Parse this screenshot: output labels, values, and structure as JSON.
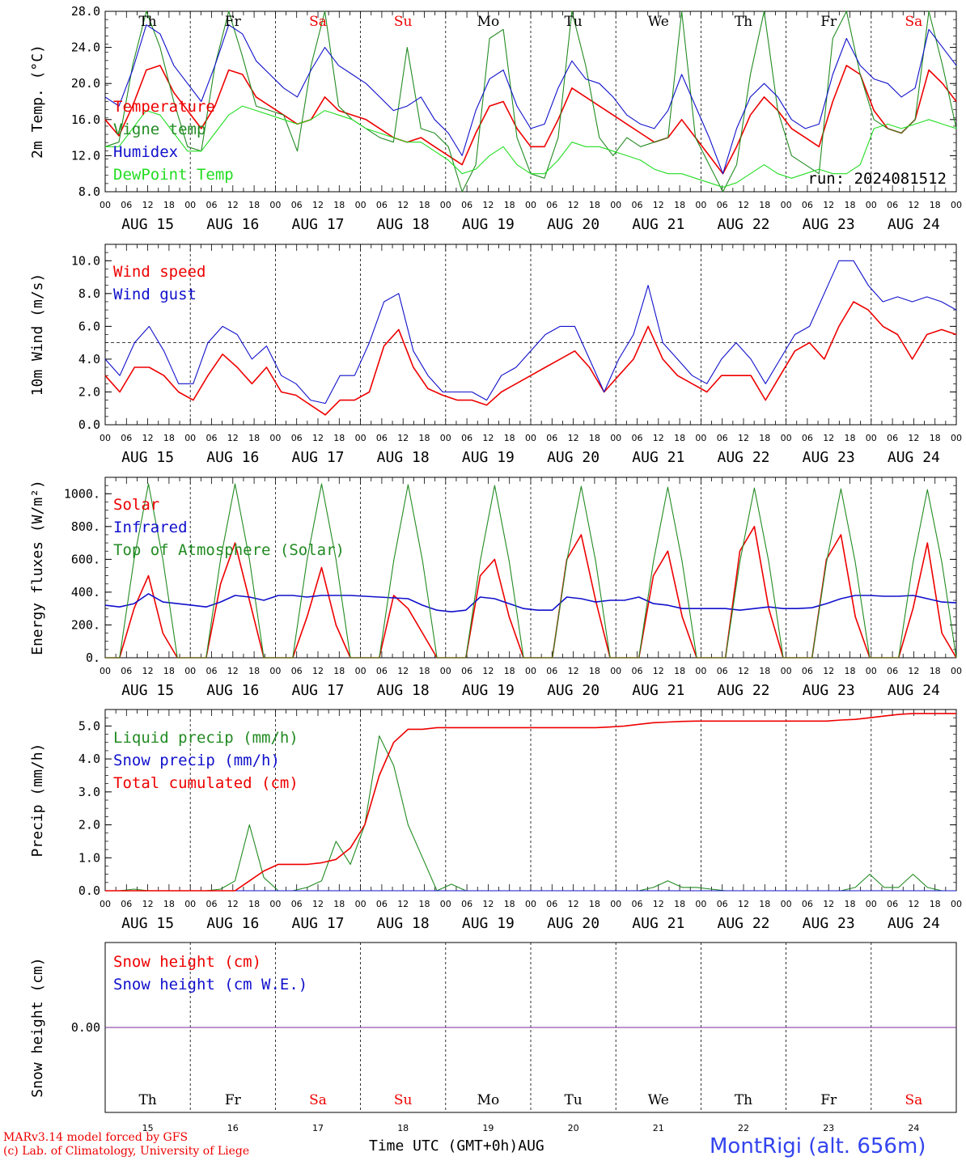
{
  "days": [
    "Th",
    "Fr",
    "Sa",
    "Su",
    "Mo",
    "Tu",
    "We",
    "Th",
    "Fr",
    "Sa"
  ],
  "day_colors": [
    "#000000",
    "#000000",
    "#ee0000",
    "#ee0000",
    "#000000",
    "#000000",
    "#000000",
    "#000000",
    "#000000",
    "#ee0000"
  ],
  "dates": [
    "AUG 15",
    "AUG 16",
    "AUG 17",
    "AUG 18",
    "AUG 19",
    "AUG 20",
    "AUG 21",
    "AUG 22",
    "AUG 23",
    "AUG 24"
  ],
  "day_numbers": [
    "15",
    "16",
    "17",
    "18",
    "19",
    "20",
    "21",
    "22",
    "23",
    "24"
  ],
  "hour_labels": [
    "00",
    "06",
    "12",
    "18"
  ],
  "run_label": "run: 2024081512",
  "xaxis_label": "Time UTC (GMT+0h)",
  "xaxis_month": "AUG",
  "footer": {
    "model": "MARv3.14 model forced by GFS",
    "lab": "(c) Lab. of Climatology, University of Liege",
    "station": "MontRigi (alt. 656m)"
  },
  "chart_data": [
    {
      "type": "line",
      "ylabel": "2m Temp. (°C)",
      "ylim": [
        8.0,
        28.0
      ],
      "yticks": [
        "8.0",
        "12.0",
        "16.0",
        "20.0",
        "24.0",
        "28.0"
      ],
      "x_step_hours": 6,
      "series": [
        {
          "name": "Temperature",
          "color": "#ee0000",
          "values": [
            16,
            14.2,
            17.5,
            21.5,
            22,
            19,
            17,
            15,
            17.5,
            21.5,
            21,
            18.5,
            17.5,
            16.5,
            15.5,
            16,
            18.5,
            17,
            16.5,
            16,
            15,
            14,
            13.5,
            14,
            13,
            12,
            11,
            14.5,
            17.5,
            18,
            15,
            13,
            13,
            16,
            19.5,
            18.5,
            17.5,
            16.5,
            15.5,
            14.5,
            13.5,
            14,
            16,
            14,
            12,
            10,
            13,
            16.5,
            18.5,
            17,
            15,
            14,
            13,
            18,
            22,
            21,
            17,
            15,
            14.5,
            16,
            21.5,
            20,
            18
          ]
        },
        {
          "name": "Vigne temp",
          "color": "#228b22",
          "values": [
            13,
            13.5,
            22,
            28,
            24,
            18,
            13,
            12.5,
            22,
            28,
            23,
            17.5,
            17,
            16.5,
            12.5,
            22,
            28,
            17.5,
            16,
            15,
            14,
            13.5,
            24,
            15,
            14.5,
            13,
            8,
            11,
            25,
            26,
            14,
            10,
            9.5,
            14,
            28,
            22,
            14,
            12,
            14,
            13,
            13.5,
            14,
            28,
            14,
            11,
            8,
            11,
            21,
            28,
            17,
            12,
            11,
            10,
            25,
            28,
            21,
            16,
            15,
            14.5,
            16,
            28,
            22,
            15
          ]
        },
        {
          "name": "Humidex",
          "color": "#1010cc",
          "values": [
            18.5,
            17.5,
            21.5,
            26.5,
            25.5,
            22,
            20,
            18,
            22,
            26.5,
            25.5,
            22.5,
            21,
            19.5,
            18.5,
            21.5,
            24,
            22,
            21,
            20,
            18.5,
            17,
            17.5,
            18.5,
            16,
            14.5,
            12,
            17,
            20.5,
            21.5,
            17.5,
            15,
            15.5,
            19.5,
            22.5,
            20.5,
            20,
            18.5,
            16.5,
            15.5,
            15,
            17,
            21,
            17.5,
            14,
            10,
            15,
            18.5,
            20,
            18.5,
            16,
            15,
            15.5,
            21,
            25,
            22,
            20.5,
            20,
            18.5,
            19.5,
            26,
            24,
            22
          ]
        },
        {
          "name": "DewPoint Temp",
          "color": "#22dd22",
          "values": [
            13,
            13,
            15,
            17,
            16.5,
            14.5,
            12.5,
            12.5,
            14.5,
            16.5,
            17.5,
            17,
            16.5,
            16,
            15.5,
            16,
            17,
            16.5,
            16,
            15,
            14.5,
            14,
            13.5,
            13.5,
            12.5,
            11.5,
            10,
            10.5,
            12,
            13,
            11,
            10,
            10,
            11.5,
            13.5,
            13,
            13,
            12.5,
            12,
            11.5,
            10.5,
            10,
            10,
            9.5,
            9,
            8.5,
            9,
            10,
            11,
            10,
            9.5,
            10,
            10.5,
            10,
            10,
            11,
            15,
            15.5,
            15,
            15.5,
            16,
            15.5,
            15
          ]
        }
      ]
    },
    {
      "type": "line",
      "ylabel": "10m Wind (m/s)",
      "ylim": [
        0.0,
        11.0
      ],
      "yticks": [
        "0.0",
        "2.0",
        "4.0",
        "6.0",
        "8.0",
        "10.0"
      ],
      "reference_line": 5.0,
      "x_step_hours": 6,
      "series": [
        {
          "name": "Wind speed",
          "color": "#ee0000",
          "values": [
            3,
            2,
            3.5,
            3.5,
            3,
            2,
            1.5,
            3,
            4.3,
            3.5,
            2.5,
            3.5,
            2,
            1.8,
            1.2,
            0.6,
            1.5,
            1.5,
            2,
            4.8,
            5.8,
            3.5,
            2.2,
            1.8,
            1.5,
            1.5,
            1.2,
            2,
            2.5,
            3,
            3.5,
            4,
            4.5,
            3.5,
            2,
            3,
            4,
            6,
            4,
            3,
            2.5,
            2,
            3,
            3,
            3,
            1.5,
            3,
            4.5,
            5,
            4,
            6,
            7.5,
            7,
            6,
            5.5,
            4,
            5.5,
            5.8,
            5.5
          ]
        },
        {
          "name": "Wind gust",
          "color": "#1010cc",
          "values": [
            4,
            3,
            5,
            6,
            4.5,
            2.5,
            2.5,
            5,
            6,
            5.5,
            4,
            4.8,
            3,
            2.5,
            1.5,
            1.3,
            3,
            3,
            5,
            7.5,
            8,
            4.5,
            3,
            2,
            2,
            2,
            1.5,
            3,
            3.5,
            4.5,
            5.5,
            6,
            6,
            4,
            2,
            4,
            5.5,
            8.5,
            5,
            4,
            3,
            2.5,
            4,
            5,
            4,
            2.5,
            4,
            5.5,
            6,
            8,
            10,
            10,
            8.5,
            7.5,
            7.8,
            7.5,
            7.8,
            7.5,
            7
          ]
        }
      ]
    },
    {
      "type": "line",
      "ylabel": "Energy fluxes (W/m²)",
      "ylim": [
        0,
        1100
      ],
      "yticks": [
        "0.",
        "200.",
        "400.",
        "600.",
        "800.",
        "1000."
      ],
      "x_step_hours": 6,
      "series": [
        {
          "name": "Solar",
          "color": "#ee0000",
          "values": [
            0,
            0,
            300,
            500,
            150,
            0,
            0,
            0,
            450,
            700,
            350,
            0,
            0,
            0,
            250,
            550,
            200,
            0,
            0,
            0,
            380,
            300,
            150,
            0,
            0,
            0,
            500,
            600,
            250,
            0,
            0,
            0,
            600,
            750,
            350,
            0,
            0,
            0,
            500,
            650,
            250,
            0,
            0,
            0,
            650,
            800,
            300,
            0,
            0,
            0,
            600,
            750,
            250,
            0,
            0,
            0,
            300,
            700,
            150,
            0
          ]
        },
        {
          "name": "Infrared",
          "color": "#1010cc",
          "values": [
            320,
            310,
            330,
            390,
            340,
            330,
            320,
            310,
            340,
            380,
            370,
            350,
            380,
            380,
            370,
            380,
            380,
            380,
            375,
            370,
            365,
            360,
            320,
            290,
            280,
            290,
            370,
            360,
            330,
            300,
            290,
            290,
            370,
            360,
            340,
            350,
            350,
            370,
            330,
            320,
            300,
            300,
            300,
            300,
            290,
            300,
            310,
            300,
            300,
            305,
            330,
            360,
            380,
            380,
            375,
            375,
            380,
            360,
            340,
            335
          ]
        },
        {
          "name": "Top of Atmosphere (Solar)",
          "color": "#228b22",
          "values": [
            0,
            0,
            600,
            1060,
            600,
            0,
            0,
            0,
            600,
            1060,
            600,
            0,
            0,
            0,
            600,
            1060,
            600,
            0,
            0,
            0,
            590,
            1055,
            590,
            0,
            0,
            0,
            590,
            1050,
            590,
            0,
            0,
            0,
            590,
            1045,
            590,
            0,
            0,
            0,
            585,
            1040,
            585,
            0,
            0,
            0,
            585,
            1035,
            585,
            0,
            0,
            0,
            580,
            1030,
            580,
            0,
            0,
            0,
            580,
            1025,
            580,
            0
          ]
        }
      ]
    },
    {
      "type": "line",
      "ylabel": "Precip (mm/h)",
      "ylim": [
        0.0,
        5.5
      ],
      "yticks": [
        "0.0",
        "1.0",
        "2.0",
        "3.0",
        "4.0",
        "5.0"
      ],
      "x_step_hours": 6,
      "series": [
        {
          "name": "Liquid precip (mm/h)",
          "color": "#228b22",
          "values": [
            0,
            0,
            0.05,
            0,
            0,
            0,
            0,
            0,
            0.05,
            0.3,
            2.0,
            0.4,
            0,
            0,
            0.1,
            0.3,
            1.5,
            0.8,
            2.0,
            4.7,
            3.8,
            2.0,
            1.0,
            0,
            0.2,
            0,
            0,
            0,
            0,
            0,
            0,
            0,
            0,
            0,
            0,
            0,
            0,
            0,
            0.1,
            0.3,
            0.1,
            0.1,
            0.05,
            0,
            0,
            0,
            0,
            0,
            0,
            0,
            0,
            0,
            0.1,
            0.5,
            0.1,
            0.1,
            0.5,
            0.1,
            0,
            0
          ]
        },
        {
          "name": "Snow precip (mm/h)",
          "color": "#1010cc",
          "values": [
            0,
            0,
            0,
            0,
            0,
            0,
            0,
            0,
            0,
            0,
            0,
            0,
            0,
            0,
            0,
            0,
            0,
            0,
            0,
            0,
            0,
            0,
            0,
            0,
            0,
            0,
            0,
            0,
            0,
            0,
            0,
            0,
            0,
            0,
            0,
            0,
            0,
            0,
            0,
            0,
            0,
            0,
            0,
            0,
            0,
            0,
            0,
            0,
            0,
            0,
            0,
            0,
            0,
            0,
            0,
            0,
            0,
            0,
            0,
            0
          ]
        },
        {
          "name": "Total cumulated (cm)",
          "color": "#ee0000",
          "values": [
            0,
            0,
            0,
            0,
            0,
            0,
            0,
            0,
            0,
            0,
            0.3,
            0.6,
            0.8,
            0.8,
            0.8,
            0.85,
            0.95,
            1.3,
            2.0,
            3.5,
            4.5,
            4.9,
            4.9,
            4.95,
            4.95,
            4.95,
            4.95,
            4.95,
            4.95,
            4.95,
            4.95,
            4.95,
            4.95,
            4.95,
            4.95,
            4.97,
            5.0,
            5.05,
            5.1,
            5.12,
            5.14,
            5.15,
            5.15,
            5.15,
            5.15,
            5.15,
            5.15,
            5.15,
            5.15,
            5.15,
            5.15,
            5.18,
            5.2,
            5.25,
            5.3,
            5.35,
            5.38,
            5.38,
            5.38,
            5.38
          ]
        }
      ]
    },
    {
      "type": "line",
      "ylabel": "Snow height (cm)",
      "yticks": [
        "0.00"
      ],
      "x_step_hours": 6,
      "series": [
        {
          "name": "Snow height (cm)",
          "color": "#ee0000",
          "values": [
            0,
            0
          ]
        },
        {
          "name": "Snow height (cm W.E.)",
          "color": "#1010cc",
          "values": [
            0,
            0
          ]
        }
      ]
    }
  ]
}
